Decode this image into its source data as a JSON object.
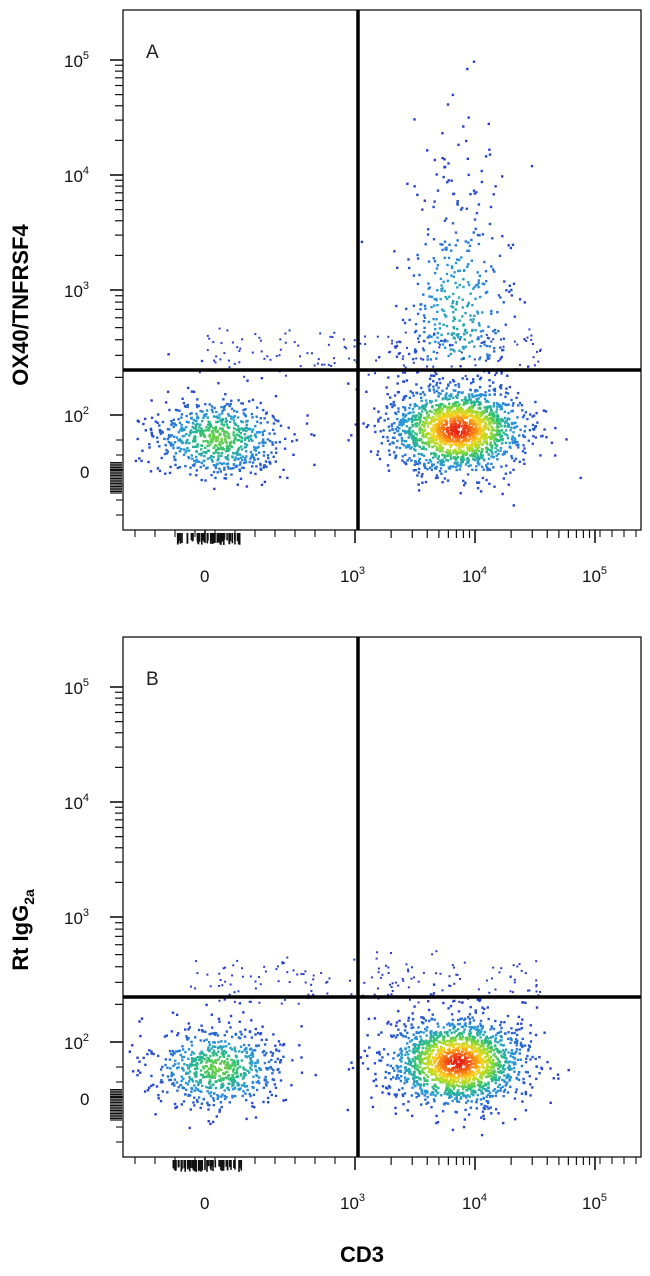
{
  "chart_data": [
    {
      "type": "scatter",
      "panel_label": "A",
      "xlabel": "CD3",
      "ylabel": "OX40/TNFRSF4",
      "x_ticks": [
        "0",
        "10^3",
        "10^4",
        "10^5"
      ],
      "y_ticks": [
        "0",
        "10^2",
        "10^3",
        "10^4",
        "10^5"
      ],
      "x_gate": 1200,
      "y_gate": 230,
      "populations": [
        {
          "name": "",
          "x_center": 80,
          "y_center": 60,
          "count": 700
        },
        {
          "name": "",
          "x_center": 7000,
          "y_center": 75,
          "count": 1700
        },
        {
          "name": "",
          "x_center": 7000,
          "y_center": 700,
          "count": 380
        }
      ]
    },
    {
      "type": "scatter",
      "panel_label": "B",
      "xlabel": "CD3",
      "ylabel": "Rt IgG2a",
      "x_ticks": [
        "0",
        "10^3",
        "10^4",
        "10^5"
      ],
      "y_ticks": [
        "0",
        "10^2",
        "10^3",
        "10^4",
        "10^5"
      ],
      "x_gate": 1200,
      "y_gate": 230,
      "populations": [
        {
          "name": "",
          "x_center": 80,
          "y_center": 55,
          "count": 700
        },
        {
          "name": "",
          "x_center": 7000,
          "y_center": 65,
          "count": 1700
        }
      ]
    }
  ],
  "labels": {
    "panel_a": "A",
    "panel_b": "B",
    "x_axis_title": "CD3",
    "y_axis_a": "OX40/TNFRSF4",
    "y_axis_b_main": "Rt IgG",
    "y_axis_b_sub": "2a",
    "tick_base": "10",
    "tick_zero": "0",
    "exp_2": "2",
    "exp_3": "3",
    "exp_4": "4",
    "exp_5": "5"
  }
}
